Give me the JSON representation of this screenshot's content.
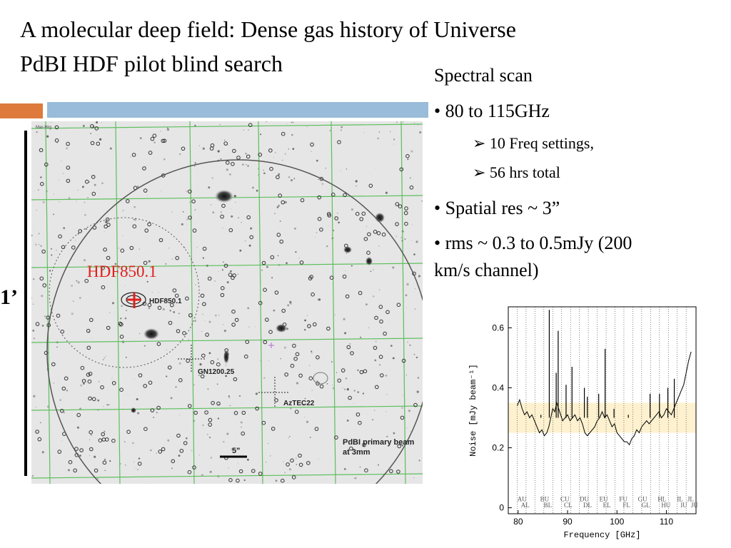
{
  "title": {
    "line1": "A molecular deep field: Dense gas history of Universe",
    "line2": "PdBI HDF pilot blind search"
  },
  "scale_label": "1’",
  "bullets": {
    "heading": "Spectral scan",
    "item1": "• 80 to 115GHz",
    "sub1": "➢ 10 Freq settings,",
    "sub2": "➢ 56 hrs total",
    "item2": "• Spatial res ~ 3”",
    "item3_line1": "• rms ~ 0.3 to 0.5mJy (200",
    "item3_line2": "km/s channel)"
  },
  "field": {
    "header_label": "Mar-Hrg",
    "target_label": "HDF850.1",
    "target_label_small": "HDF850.1",
    "source2": "GN1200.25",
    "source3": "AzTEC22",
    "beam_label_1": "PdBI primary beam",
    "beam_label_2": "at 3mm",
    "scale_bar": "5\"",
    "colors": {
      "target": "#e0201c",
      "grid": "#5cbf5c"
    }
  },
  "chart_data": {
    "type": "line",
    "title": "",
    "xlabel": "Frequency [GHz]",
    "ylabel": "Noise [mJy beam⁻¹]",
    "xlim": [
      78,
      116
    ],
    "ylim": [
      -0.02,
      0.67
    ],
    "x_ticks": [
      80,
      90,
      100,
      110
    ],
    "y_ticks": [
      0,
      0.2,
      0.4,
      0.6
    ],
    "band": {
      "from": 0.25,
      "to": 0.35,
      "color": "#fdf1cf"
    },
    "setting_labels_top": [
      "AU",
      "BU",
      "CU",
      "DU",
      "EU",
      "FU",
      "GU",
      "HL",
      "IL",
      "JL"
    ],
    "setting_labels_bottom": [
      "AL",
      "BL",
      "CL",
      "DL",
      "EL",
      "FL",
      "GL",
      "HU",
      "IU",
      "JU"
    ],
    "series": [
      {
        "values": [
          [
            79.8,
            0.34
          ],
          [
            80.3,
            0.36
          ],
          [
            80.8,
            0.33
          ],
          [
            81.3,
            0.31
          ],
          [
            81.8,
            0.32
          ],
          [
            82.3,
            0.3
          ],
          [
            82.8,
            0.31
          ],
          [
            83.3,
            0.29
          ],
          [
            83.8,
            0.27
          ],
          [
            84.3,
            0.25
          ],
          [
            84.8,
            0.26
          ],
          [
            85.3,
            0.24
          ],
          [
            85.8,
            0.25
          ],
          [
            86.2,
            0.27
          ],
          [
            86.6,
            0.3
          ],
          [
            87.0,
            0.33
          ],
          [
            87.4,
            0.32
          ],
          [
            87.8,
            0.35
          ],
          [
            88.2,
            0.33
          ],
          [
            88.6,
            0.31
          ],
          [
            89.0,
            0.29
          ],
          [
            89.5,
            0.3
          ],
          [
            90.0,
            0.31
          ],
          [
            90.5,
            0.29
          ],
          [
            91.0,
            0.3
          ],
          [
            91.5,
            0.31
          ],
          [
            92.0,
            0.29
          ],
          [
            92.5,
            0.3
          ],
          [
            93.0,
            0.28
          ],
          [
            93.5,
            0.25
          ],
          [
            94.0,
            0.24
          ],
          [
            94.5,
            0.25
          ],
          [
            95.0,
            0.26
          ],
          [
            95.5,
            0.27
          ],
          [
            96.0,
            0.29
          ],
          [
            96.5,
            0.3
          ],
          [
            97.0,
            0.32
          ],
          [
            97.5,
            0.3
          ],
          [
            98.0,
            0.31
          ],
          [
            98.5,
            0.29
          ],
          [
            99.0,
            0.27
          ],
          [
            99.5,
            0.28
          ],
          [
            100.0,
            0.25
          ],
          [
            100.5,
            0.24
          ],
          [
            101.0,
            0.23
          ],
          [
            101.5,
            0.22
          ],
          [
            102.0,
            0.22
          ],
          [
            102.5,
            0.21
          ],
          [
            103.0,
            0.23
          ],
          [
            103.5,
            0.24
          ],
          [
            104.0,
            0.26
          ],
          [
            104.5,
            0.25
          ],
          [
            105.0,
            0.27
          ],
          [
            105.5,
            0.28
          ],
          [
            106.0,
            0.29
          ],
          [
            106.5,
            0.28
          ],
          [
            107.0,
            0.29
          ],
          [
            107.5,
            0.3
          ],
          [
            108.0,
            0.31
          ],
          [
            108.5,
            0.32
          ],
          [
            109.0,
            0.3
          ],
          [
            109.5,
            0.31
          ],
          [
            110.0,
            0.33
          ],
          [
            110.5,
            0.32
          ],
          [
            111.0,
            0.31
          ],
          [
            111.5,
            0.33
          ],
          [
            112.0,
            0.35
          ],
          [
            112.5,
            0.37
          ],
          [
            113.0,
            0.39
          ],
          [
            113.5,
            0.41
          ],
          [
            114.0,
            0.45
          ],
          [
            114.5,
            0.49
          ],
          [
            115.0,
            0.52
          ]
        ]
      }
    ],
    "spikes": [
      {
        "x": 84.6,
        "y": 0.31
      },
      {
        "x": 86.3,
        "y": 0.66
      },
      {
        "x": 87.7,
        "y": 0.45
      },
      {
        "x": 88.1,
        "y": 0.59
      },
      {
        "x": 89.7,
        "y": 0.41
      },
      {
        "x": 90.9,
        "y": 0.47
      },
      {
        "x": 93.4,
        "y": 0.4
      },
      {
        "x": 94.0,
        "y": 0.37
      },
      {
        "x": 96.3,
        "y": 0.38
      },
      {
        "x": 97.6,
        "y": 0.53
      },
      {
        "x": 99.4,
        "y": 0.33
      },
      {
        "x": 102.3,
        "y": 0.31
      },
      {
        "x": 106.7,
        "y": 0.38
      },
      {
        "x": 108.6,
        "y": 0.38
      },
      {
        "x": 110.3,
        "y": 0.4
      },
      {
        "x": 111.6,
        "y": 0.43
      }
    ]
  }
}
